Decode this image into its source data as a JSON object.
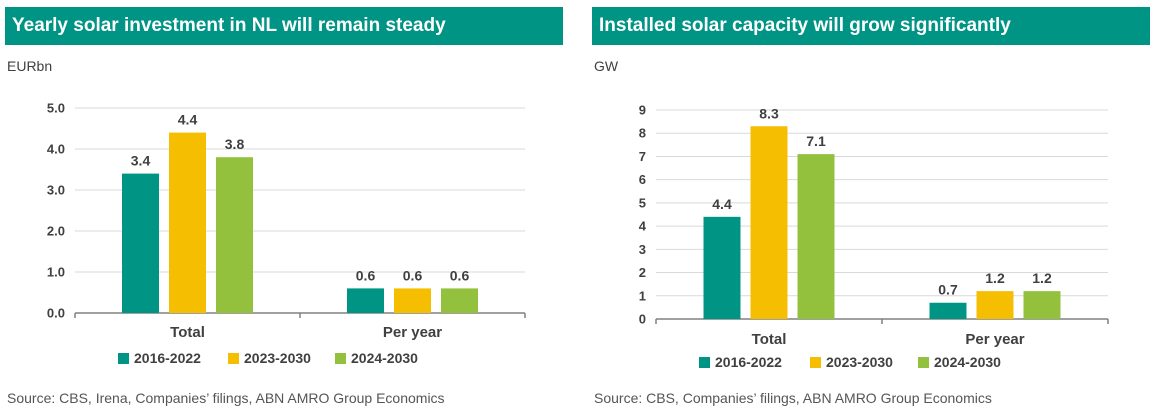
{
  "chart_data": [
    {
      "type": "bar",
      "title": "Yearly solar investment in NL will remain steady",
      "ylabel": "EURbn",
      "source": "Source: CBS, Irena, Companies’ filings, ABN AMRO Group Economics",
      "categories": [
        "Total",
        "Per year"
      ],
      "series": [
        {
          "name": "2016-2022",
          "values": [
            3.4,
            0.6
          ],
          "labels": [
            "3.4",
            "0.6"
          ],
          "color": "#009484"
        },
        {
          "name": "2023-2030",
          "values": [
            4.4,
            0.6
          ],
          "labels": [
            "4.4",
            "0.6"
          ],
          "color": "#F5BE00"
        },
        {
          "name": "2024-2030",
          "values": [
            3.8,
            0.6
          ],
          "labels": [
            "3.8",
            "0.6"
          ],
          "color": "#94C13D"
        }
      ],
      "ylim": [
        0,
        5
      ],
      "yticks": [
        "0.0",
        "1.0",
        "2.0",
        "3.0",
        "4.0",
        "5.0"
      ],
      "grid": true,
      "legend": "bottom"
    },
    {
      "type": "bar",
      "title": "Installed solar capacity will grow significantly",
      "ylabel": "GW",
      "source": "Source: CBS, Companies’ filings, ABN AMRO Group Economics",
      "categories": [
        "Total",
        "Per year"
      ],
      "series": [
        {
          "name": "2016-2022",
          "values": [
            4.4,
            0.7
          ],
          "labels": [
            "4.4",
            "0.7"
          ],
          "color": "#009484"
        },
        {
          "name": "2023-2030",
          "values": [
            8.3,
            1.2
          ],
          "labels": [
            "8.3",
            "1.2"
          ],
          "color": "#F5BE00"
        },
        {
          "name": "2024-2030",
          "values": [
            7.1,
            1.2
          ],
          "labels": [
            "7.1",
            "1.2"
          ],
          "color": "#94C13D"
        }
      ],
      "ylim": [
        0,
        9
      ],
      "yticks": [
        "0",
        "1",
        "2",
        "3",
        "4",
        "5",
        "6",
        "7",
        "8",
        "9"
      ],
      "grid": true,
      "legend": "bottom"
    }
  ]
}
